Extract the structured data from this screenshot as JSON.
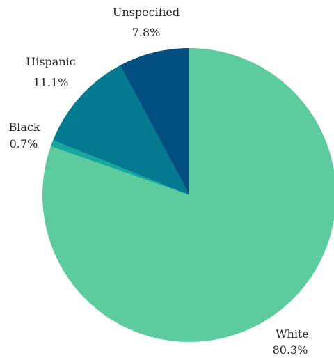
{
  "chart_data": {
    "type": "pie",
    "title": "",
    "start_angle_deg": 0,
    "direction": "clockwise",
    "slices": [
      {
        "name": "White",
        "value": 80.3,
        "label": "80.3%",
        "color": "#5ccc9f"
      },
      {
        "name": "Black",
        "value": 0.7,
        "label": "0.7%",
        "color": "#16a89f"
      },
      {
        "name": "Hispanic",
        "value": 11.1,
        "label": "11.1%",
        "color": "#047a90"
      },
      {
        "name": "Unspecified",
        "value": 7.8,
        "label": "7.8%",
        "color": "#034f80"
      }
    ]
  }
}
